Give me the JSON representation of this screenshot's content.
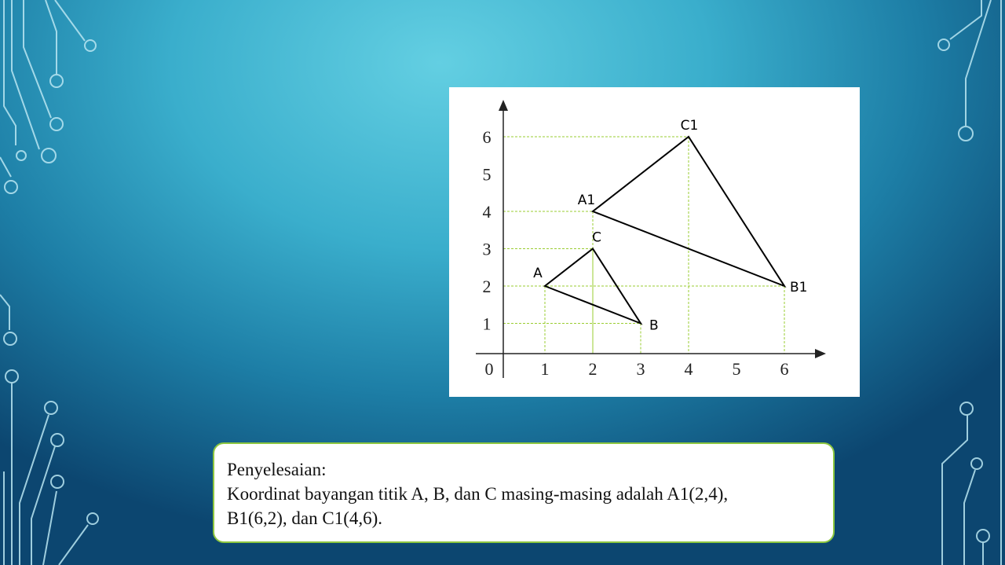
{
  "diagram": {
    "x_ticks": [
      "0",
      "1",
      "2",
      "3",
      "4",
      "5",
      "6"
    ],
    "y_ticks": [
      "1",
      "2",
      "3",
      "4",
      "5",
      "6"
    ],
    "original_triangle": {
      "A": {
        "label": "A",
        "x": 1,
        "y": 2
      },
      "B": {
        "label": "B",
        "x": 3,
        "y": 1
      },
      "C": {
        "label": "C",
        "x": 2,
        "y": 3
      }
    },
    "image_triangle": {
      "A1": {
        "label": "A1",
        "x": 2,
        "y": 4
      },
      "B1": {
        "label": "B1",
        "x": 6,
        "y": 2
      },
      "C1": {
        "label": "C1",
        "x": 4,
        "y": 6
      }
    },
    "colors": {
      "triangle": "#000000",
      "guide_lines": "#9acd32",
      "axes": "#222222"
    }
  },
  "answer": {
    "heading": "Penyelesaian:",
    "line1": "Koordinat bayangan titik A, B, dan C masing-masing  adalah A1(2,4),",
    "line2": "B1(6,2), dan C1(4,6)."
  }
}
